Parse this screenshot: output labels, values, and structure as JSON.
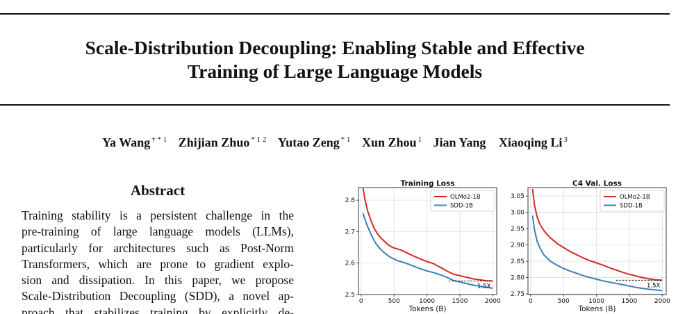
{
  "paper": {
    "title_lines": [
      "Scale-Distribution Decoupling: Enabling Stable and Effective",
      "Training of Large Language Models"
    ],
    "authors": [
      {
        "name": "Ya Wang",
        "affil": "† * 1"
      },
      {
        "name": "Zhijian Zhuo",
        "affil": "* 1 2"
      },
      {
        "name": "Yutao Zeng",
        "affil": "* 1"
      },
      {
        "name": "Xun Zhou",
        "affil": "1"
      },
      {
        "name": "Jian Yang",
        "affil": ""
      },
      {
        "name": "Xiaoqing Li",
        "affil": "3"
      }
    ],
    "abstract": {
      "heading": "Abstract",
      "lines": [
        "Training stability is a persistent challenge in the",
        "pre-training of large language models (LLMs),",
        "particularly for architectures such as Post-Norm",
        "Transformers, which are prone to gradient explo-",
        "sion and dissipation.  In this paper, we propose",
        "Scale-Distribution Decoupling (SDD), a novel ap-",
        "proach that stabilizes training by explicitly de-"
      ]
    }
  },
  "colors": {
    "olmo": "#d62728",
    "sdd": "#3a7eb8",
    "grid": "#dddddd"
  },
  "chart_data": [
    {
      "type": "line",
      "title": "Training Loss",
      "xlabel": "Tokens (B)",
      "ylabel": "",
      "xlim": [
        -40,
        2060
      ],
      "ylim": [
        2.5,
        2.84
      ],
      "xticks": [
        0,
        500,
        1000,
        1500,
        2000
      ],
      "yticks": [
        2.5,
        2.6,
        2.7,
        2.8
      ],
      "ytick_labels": [
        "2.5",
        "2.6",
        "2.7",
        "2.8"
      ],
      "grid": true,
      "legend": "top-right",
      "annotation": {
        "text": "1.5X",
        "x_from": 1330,
        "x_to": 2000,
        "y": 2.543
      },
      "series": [
        {
          "name": "OLMo2-1B",
          "color": "olmo",
          "x": [
            30,
            60,
            100,
            150,
            200,
            250,
            300,
            350,
            400,
            450,
            500,
            550,
            600,
            700,
            800,
            900,
            1000,
            1100,
            1200,
            1300,
            1400,
            1500,
            1600,
            1700,
            1800,
            1900,
            2000
          ],
          "y": [
            2.838,
            2.8,
            2.765,
            2.735,
            2.71,
            2.693,
            2.68,
            2.67,
            2.66,
            2.653,
            2.648,
            2.645,
            2.642,
            2.632,
            2.622,
            2.613,
            2.605,
            2.598,
            2.587,
            2.575,
            2.565,
            2.56,
            2.555,
            2.55,
            2.547,
            2.544,
            2.543
          ]
        },
        {
          "name": "SDD-1B",
          "color": "sdd",
          "x": [
            30,
            60,
            100,
            150,
            200,
            250,
            300,
            350,
            400,
            450,
            500,
            550,
            600,
            700,
            800,
            900,
            1000,
            1100,
            1200,
            1300,
            1400,
            1500,
            1600,
            1700,
            1800,
            1900,
            2000
          ],
          "y": [
            2.758,
            2.738,
            2.715,
            2.692,
            2.67,
            2.655,
            2.643,
            2.633,
            2.625,
            2.618,
            2.613,
            2.608,
            2.605,
            2.598,
            2.59,
            2.582,
            2.575,
            2.57,
            2.563,
            2.555,
            2.545,
            2.54,
            2.535,
            2.53,
            2.527,
            2.523,
            2.52
          ]
        }
      ]
    },
    {
      "type": "line",
      "title": "C4 Val. Loss",
      "xlabel": "Tokens (B)",
      "ylabel": "",
      "xlim": [
        -40,
        2060
      ],
      "ylim": [
        2.748,
        3.076
      ],
      "xticks": [
        0,
        500,
        1000,
        1500,
        2000
      ],
      "yticks": [
        2.75,
        2.8,
        2.85,
        2.9,
        2.95,
        3.0,
        3.05
      ],
      "ytick_labels": [
        "2.75",
        "2.80",
        "2.85",
        "2.90",
        "2.95",
        "3.00",
        "3.05"
      ],
      "grid": true,
      "legend": "top-right",
      "annotation": {
        "text": "1.5X",
        "x_from": 1300,
        "x_to": 2000,
        "y": 2.792
      },
      "series": [
        {
          "name": "OLMo2-1B",
          "color": "olmo",
          "x": [
            30,
            60,
            100,
            150,
            200,
            250,
            300,
            400,
            500,
            600,
            700,
            800,
            900,
            1000,
            1100,
            1200,
            1300,
            1400,
            1500,
            1600,
            1700,
            1800,
            1900,
            2000
          ],
          "y": [
            3.072,
            3.02,
            2.985,
            2.96,
            2.945,
            2.932,
            2.922,
            2.905,
            2.892,
            2.88,
            2.87,
            2.86,
            2.852,
            2.845,
            2.838,
            2.83,
            2.823,
            2.816,
            2.81,
            2.805,
            2.8,
            2.796,
            2.793,
            2.792
          ]
        },
        {
          "name": "SDD-1B",
          "color": "sdd",
          "x": [
            30,
            60,
            100,
            150,
            200,
            250,
            300,
            400,
            500,
            600,
            700,
            800,
            900,
            1000,
            1100,
            1200,
            1300,
            1400,
            1500,
            1600,
            1700,
            1800,
            1900,
            2000
          ],
          "y": [
            2.99,
            2.945,
            2.91,
            2.888,
            2.87,
            2.86,
            2.85,
            2.838,
            2.828,
            2.82,
            2.813,
            2.806,
            2.8,
            2.795,
            2.79,
            2.786,
            2.782,
            2.778,
            2.774,
            2.77,
            2.767,
            2.764,
            2.762,
            2.76
          ]
        }
      ]
    }
  ]
}
